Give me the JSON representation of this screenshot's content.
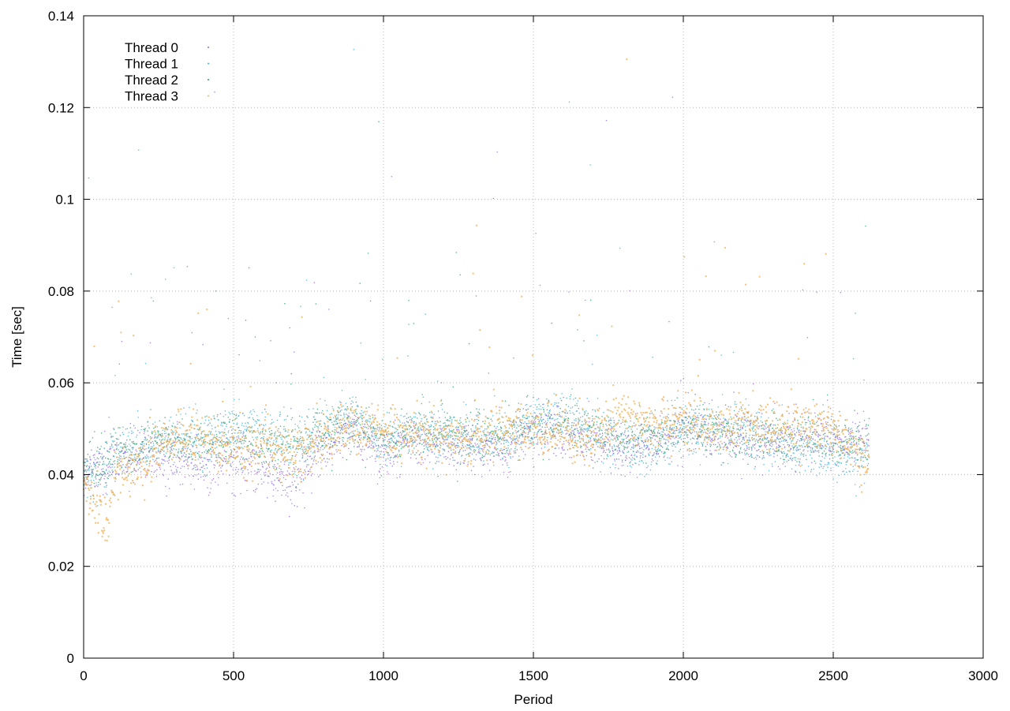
{
  "chart_data": {
    "type": "scatter",
    "title": "",
    "xlabel": "Period",
    "ylabel": "Time [sec]",
    "xlim": [
      0,
      3000
    ],
    "ylim": [
      0,
      0.14
    ],
    "xticks": [
      0,
      500,
      1000,
      1500,
      2000,
      2500,
      3000
    ],
    "xtick_labels": [
      "0",
      "500",
      "1000",
      "1500",
      "2000",
      "2500",
      "3000"
    ],
    "yticks": [
      0,
      0.02,
      0.04,
      0.06,
      0.08,
      0.1,
      0.12,
      0.14
    ],
    "ytick_labels": [
      "0",
      "0.02",
      "0.04",
      "0.06",
      "0.08",
      "0.1",
      "0.12",
      "0.14"
    ],
    "grid": true,
    "legend_position": "top-left",
    "series": [
      {
        "name": "Thread 0",
        "color": "#9467e0",
        "x_range": [
          0,
          2620
        ],
        "trend": [
          [
            0,
            0.039
          ],
          [
            50,
            0.041
          ],
          [
            100,
            0.043
          ],
          [
            200,
            0.044
          ],
          [
            300,
            0.043
          ],
          [
            400,
            0.042
          ],
          [
            500,
            0.043
          ],
          [
            600,
            0.041
          ],
          [
            700,
            0.038
          ],
          [
            800,
            0.046
          ],
          [
            900,
            0.05
          ],
          [
            1000,
            0.044
          ],
          [
            1100,
            0.048
          ],
          [
            1200,
            0.047
          ],
          [
            1300,
            0.046
          ],
          [
            1400,
            0.046
          ],
          [
            1500,
            0.05
          ],
          [
            1600,
            0.049
          ],
          [
            1700,
            0.047
          ],
          [
            1800,
            0.046
          ],
          [
            1900,
            0.047
          ],
          [
            2000,
            0.05
          ],
          [
            2100,
            0.049
          ],
          [
            2200,
            0.048
          ],
          [
            2300,
            0.047
          ],
          [
            2400,
            0.048
          ],
          [
            2500,
            0.048
          ],
          [
            2620,
            0.047
          ]
        ]
      },
      {
        "name": "Thread 1",
        "color": "#3ab0d8",
        "x_range": [
          0,
          2620
        ],
        "trend": [
          [
            0,
            0.04
          ],
          [
            50,
            0.04
          ],
          [
            100,
            0.044
          ],
          [
            200,
            0.047
          ],
          [
            300,
            0.049
          ],
          [
            400,
            0.048
          ],
          [
            500,
            0.05
          ],
          [
            600,
            0.049
          ],
          [
            700,
            0.047
          ],
          [
            800,
            0.05
          ],
          [
            900,
            0.053
          ],
          [
            1000,
            0.047
          ],
          [
            1100,
            0.049
          ],
          [
            1200,
            0.049
          ],
          [
            1300,
            0.047
          ],
          [
            1400,
            0.047
          ],
          [
            1500,
            0.052
          ],
          [
            1600,
            0.053
          ],
          [
            1700,
            0.05
          ],
          [
            1800,
            0.046
          ],
          [
            1900,
            0.046
          ],
          [
            2000,
            0.05
          ],
          [
            2100,
            0.05
          ],
          [
            2200,
            0.05
          ],
          [
            2300,
            0.047
          ],
          [
            2400,
            0.045
          ],
          [
            2500,
            0.044
          ],
          [
            2620,
            0.044
          ]
        ]
      },
      {
        "name": "Thread 2",
        "color": "#2e9e6a",
        "x_range": [
          0,
          2620
        ],
        "trend": [
          [
            0,
            0.041
          ],
          [
            50,
            0.042
          ],
          [
            100,
            0.044
          ],
          [
            200,
            0.046
          ],
          [
            300,
            0.047
          ],
          [
            400,
            0.047
          ],
          [
            500,
            0.047
          ],
          [
            600,
            0.047
          ],
          [
            700,
            0.046
          ],
          [
            800,
            0.049
          ],
          [
            900,
            0.051
          ],
          [
            1000,
            0.048
          ],
          [
            1100,
            0.049
          ],
          [
            1200,
            0.049
          ],
          [
            1300,
            0.048
          ],
          [
            1400,
            0.048
          ],
          [
            1500,
            0.051
          ],
          [
            1600,
            0.051
          ],
          [
            1700,
            0.049
          ],
          [
            1800,
            0.048
          ],
          [
            1900,
            0.048
          ],
          [
            2000,
            0.05
          ],
          [
            2100,
            0.05
          ],
          [
            2200,
            0.049
          ],
          [
            2300,
            0.048
          ],
          [
            2400,
            0.048
          ],
          [
            2500,
            0.048
          ],
          [
            2620,
            0.047
          ]
        ]
      },
      {
        "name": "Thread 3",
        "color": "#f3b45a",
        "x_range": [
          0,
          2620
        ],
        "trend": [
          [
            0,
            0.038
          ],
          [
            50,
            0.032
          ],
          [
            80,
            0.029
          ],
          [
            100,
            0.04
          ],
          [
            200,
            0.042
          ],
          [
            300,
            0.049
          ],
          [
            400,
            0.047
          ],
          [
            500,
            0.045
          ],
          [
            600,
            0.047
          ],
          [
            700,
            0.044
          ],
          [
            800,
            0.048
          ],
          [
            900,
            0.051
          ],
          [
            1000,
            0.049
          ],
          [
            1100,
            0.049
          ],
          [
            1200,
            0.047
          ],
          [
            1300,
            0.048
          ],
          [
            1400,
            0.049
          ],
          [
            1500,
            0.05
          ],
          [
            1600,
            0.049
          ],
          [
            1700,
            0.048
          ],
          [
            1800,
            0.053
          ],
          [
            1900,
            0.05
          ],
          [
            2000,
            0.052
          ],
          [
            2100,
            0.05
          ],
          [
            2200,
            0.051
          ],
          [
            2300,
            0.05
          ],
          [
            2400,
            0.051
          ],
          [
            2500,
            0.05
          ],
          [
            2620,
            0.043
          ]
        ]
      }
    ]
  }
}
